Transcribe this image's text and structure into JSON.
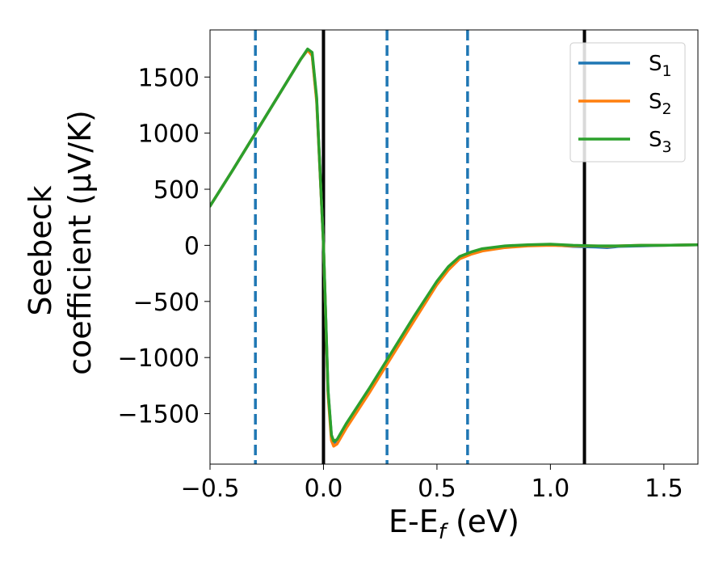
{
  "chart_data": {
    "type": "line",
    "title": "",
    "xlabel": "E-E_f (eV)",
    "xlabel_parts": {
      "pre": "E-E",
      "sub": "f",
      "post": " (eV)"
    },
    "ylabel_line1": "Seebeck",
    "ylabel_line2": "coefficient  (μV/K)",
    "xlim": [
      -0.5,
      1.65
    ],
    "ylim": [
      -1950,
      1920
    ],
    "x_ticks": [
      -0.5,
      0.0,
      0.5,
      1.0,
      1.5
    ],
    "x_tick_labels": [
      "−0.5",
      "0.0",
      "0.5",
      "1.0",
      "1.5"
    ],
    "y_ticks": [
      -1500,
      -1000,
      -500,
      0,
      500,
      1000,
      1500
    ],
    "y_tick_labels": [
      "−1500",
      "−1000",
      "−500",
      "0",
      "500",
      "1000",
      "1500"
    ],
    "grid": false,
    "legend_position": "top-right",
    "vertical_lines": [
      {
        "x": -0.3,
        "style": "dashed",
        "color": "#1f77b4"
      },
      {
        "x": 0.0,
        "style": "solid",
        "color": "#000000"
      },
      {
        "x": 0.28,
        "style": "dashed",
        "color": "#1f77b4"
      },
      {
        "x": 0.635,
        "style": "dashed",
        "color": "#1f77b4"
      },
      {
        "x": 1.15,
        "style": "solid",
        "color": "#000000"
      }
    ],
    "series": [
      {
        "name": "S1",
        "label_base": "S",
        "label_sub": "1",
        "color": "#1f77b4",
        "x": [
          -0.5,
          -0.4,
          -0.3,
          -0.2,
          -0.1,
          -0.07,
          -0.05,
          -0.03,
          0.0,
          0.02,
          0.035,
          0.045,
          0.06,
          0.1,
          0.2,
          0.28,
          0.4,
          0.5,
          0.55,
          0.6,
          0.65,
          0.7,
          0.8,
          0.9,
          1.0,
          1.1,
          1.2,
          1.25,
          1.3,
          1.4,
          1.5,
          1.65
        ],
        "y": [
          350,
          670,
          1000,
          1330,
          1660,
          1740,
          1700,
          1300,
          0,
          -1300,
          -1700,
          -1760,
          -1740,
          -1600,
          -1290,
          -1030,
          -640,
          -330,
          -200,
          -110,
          -70,
          -40,
          -10,
          0,
          5,
          -10,
          -15,
          -20,
          -10,
          -5,
          0,
          5
        ]
      },
      {
        "name": "S2",
        "label_base": "S",
        "label_sub": "2",
        "color": "#ff7f0e",
        "x": [
          -0.5,
          -0.4,
          -0.3,
          -0.2,
          -0.1,
          -0.07,
          -0.05,
          -0.03,
          0.0,
          0.02,
          0.035,
          0.045,
          0.06,
          0.1,
          0.2,
          0.28,
          0.4,
          0.5,
          0.55,
          0.6,
          0.65,
          0.7,
          0.8,
          0.9,
          1.0,
          1.1,
          1.2,
          1.25,
          1.3,
          1.4,
          1.5,
          1.65
        ],
        "y": [
          350,
          670,
          1000,
          1330,
          1660,
          1740,
          1690,
          1280,
          0,
          -1330,
          -1740,
          -1790,
          -1770,
          -1630,
          -1320,
          -1060,
          -670,
          -350,
          -220,
          -120,
          -80,
          -50,
          -20,
          -5,
          0,
          -5,
          -5,
          -10,
          -5,
          0,
          0,
          5
        ]
      },
      {
        "name": "S3",
        "label_base": "S",
        "label_sub": "3",
        "color": "#2ca02c",
        "x": [
          -0.5,
          -0.4,
          -0.3,
          -0.2,
          -0.1,
          -0.07,
          -0.05,
          -0.03,
          0.0,
          0.02,
          0.035,
          0.045,
          0.06,
          0.1,
          0.2,
          0.28,
          0.4,
          0.5,
          0.55,
          0.6,
          0.65,
          0.7,
          0.8,
          0.9,
          1.0,
          1.1,
          1.2,
          1.25,
          1.3,
          1.4,
          1.5,
          1.65
        ],
        "y": [
          350,
          670,
          1000,
          1330,
          1660,
          1750,
          1720,
          1320,
          0,
          -1290,
          -1690,
          -1745,
          -1730,
          -1590,
          -1280,
          -1020,
          -630,
          -320,
          -190,
          -100,
          -60,
          -30,
          -5,
          5,
          10,
          0,
          -5,
          -5,
          -5,
          0,
          0,
          5
        ]
      }
    ]
  }
}
